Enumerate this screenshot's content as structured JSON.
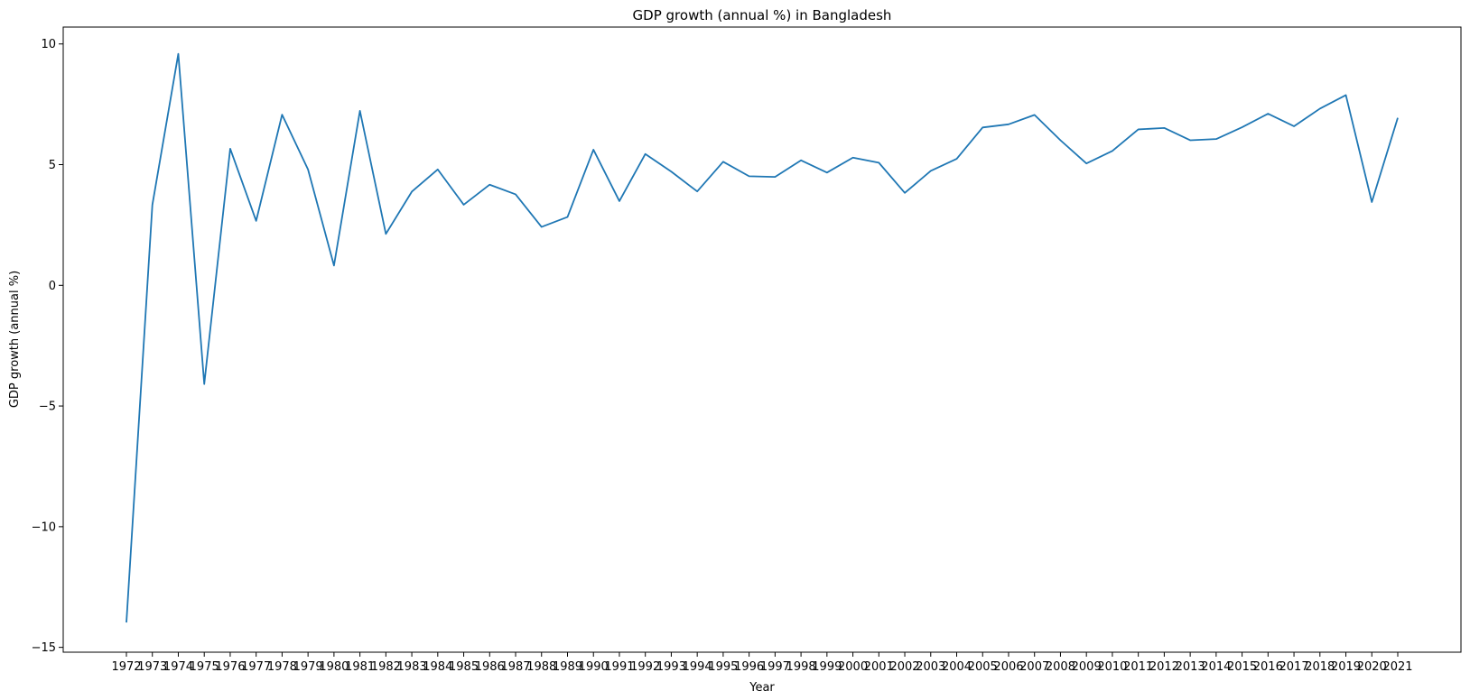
{
  "chart_data": {
    "type": "line",
    "title": "GDP growth (annual %) in Bangladesh",
    "xlabel": "Year",
    "ylabel": "GDP growth (annual %)",
    "ylim": [
      -15.2,
      10.7
    ],
    "yticks": [
      -15,
      -10,
      -5,
      0,
      5,
      10
    ],
    "ytick_labels": [
      "−15",
      "−10",
      "−5",
      "0",
      "5",
      "10"
    ],
    "grid": false,
    "legend": "none",
    "series": [
      {
        "color": "#1f77b4",
        "x": [
          "1972",
          "1973",
          "1974",
          "1975",
          "1976",
          "1977",
          "1978",
          "1979",
          "1980",
          "1981",
          "1982",
          "1983",
          "1984",
          "1985",
          "1986",
          "1987",
          "1988",
          "1989",
          "1990",
          "1991",
          "1992",
          "1993",
          "1994",
          "1995",
          "1996",
          "1997",
          "1998",
          "1999",
          "2000",
          "2001",
          "2002",
          "2003",
          "2004",
          "2005",
          "2006",
          "2007",
          "2008",
          "2009",
          "2010",
          "2011",
          "2012",
          "2013",
          "2014",
          "2015",
          "2016",
          "2017",
          "2018",
          "2019",
          "2020",
          "2021"
        ],
        "values": [
          -13.97,
          3.33,
          9.59,
          -4.09,
          5.66,
          2.67,
          7.07,
          4.8,
          0.82,
          7.23,
          2.13,
          3.88,
          4.8,
          3.34,
          4.17,
          3.77,
          2.42,
          2.83,
          5.62,
          3.49,
          5.44,
          4.71,
          3.89,
          5.12,
          4.52,
          4.49,
          5.18,
          4.67,
          5.29,
          5.08,
          3.83,
          4.74,
          5.24,
          6.54,
          6.67,
          7.06,
          6.01,
          5.05,
          5.57,
          6.46,
          6.52,
          6.01,
          6.06,
          6.55,
          7.11,
          6.59,
          7.32,
          7.88,
          3.45,
          6.94
        ]
      }
    ]
  }
}
